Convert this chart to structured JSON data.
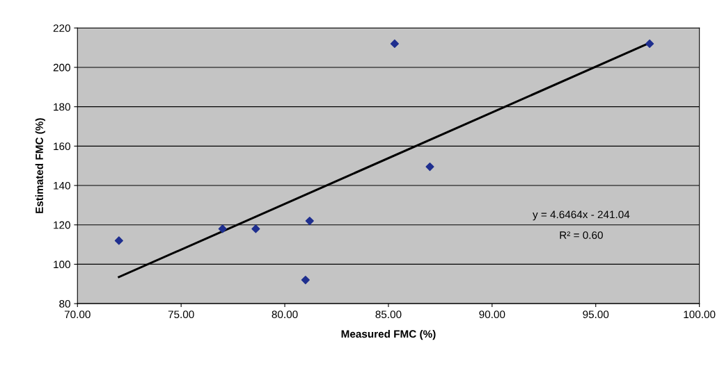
{
  "chart_data": {
    "type": "scatter",
    "xlabel": "Measured FMC (%)",
    "ylabel": "Estimated FMC (%)",
    "x": [
      72.0,
      77.0,
      78.6,
      81.2,
      81.0,
      85.3,
      87.0,
      97.6
    ],
    "series": [
      {
        "color": "#1f2f8f",
        "marker": "diamond",
        "values": [
          112,
          118,
          118,
          122,
          92,
          212,
          149.5,
          212
        ]
      },
      {
        "type": "line",
        "color": "#000000",
        "marker": "none",
        "x": [
          72.0,
          97.6
        ],
        "values": [
          93.5,
          212.4
        ]
      }
    ],
    "xlim": [
      70,
      100
    ],
    "xticks": [
      {
        "value": 70,
        "label": "70.00"
      },
      {
        "value": 75,
        "label": "75.00"
      },
      {
        "value": 80,
        "label": "80.00"
      },
      {
        "value": 85,
        "label": "85.00"
      },
      {
        "value": 90,
        "label": "90.00"
      },
      {
        "value": 95,
        "label": "95.00"
      },
      {
        "value": 100,
        "label": "100.00"
      }
    ],
    "ylim": [
      80,
      220
    ],
    "yticks": [
      80,
      100,
      120,
      140,
      160,
      180,
      200,
      220
    ],
    "grid": "y",
    "annotations": [
      "y = 4.6464x - 241.04",
      "R² = 0.60"
    ]
  }
}
